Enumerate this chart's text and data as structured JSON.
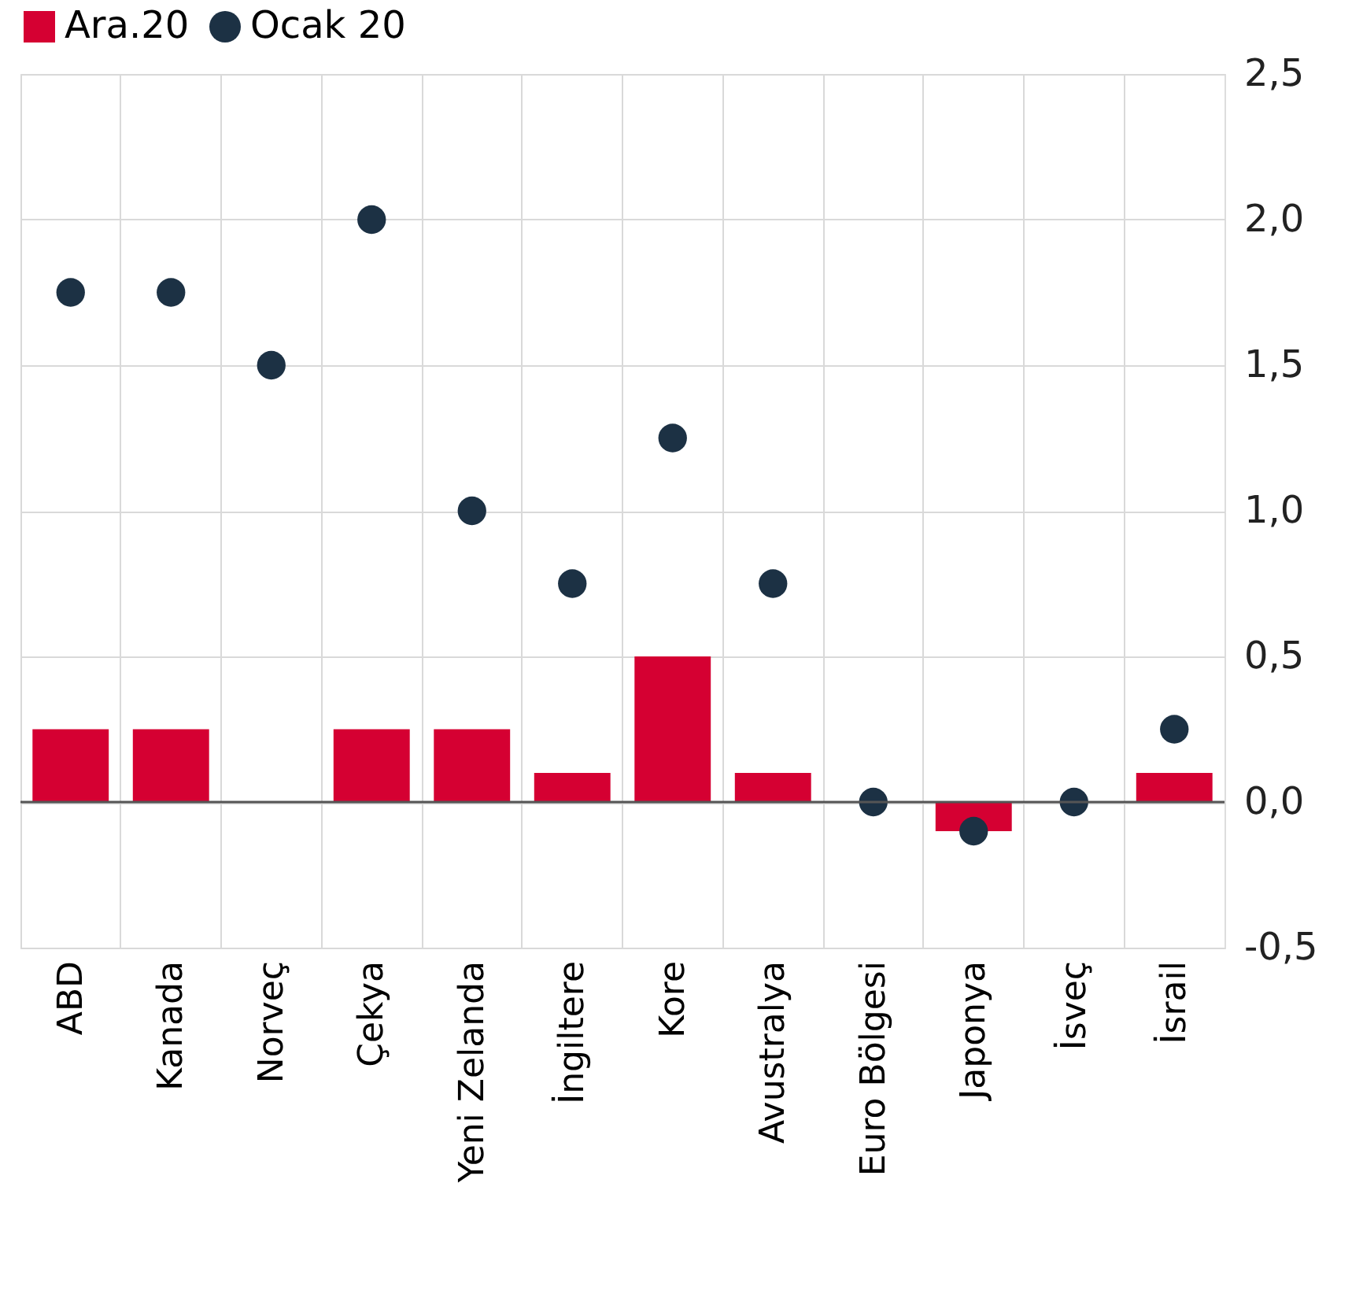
{
  "chart_data": {
    "type": "bar",
    "categories": [
      "ABD",
      "Kanada",
      "Norveç",
      "Çekya",
      "Yeni Zelanda",
      "İngiltere",
      "Kore",
      "Avustralya",
      "Euro Bölgesi",
      "Japonya",
      "İsveç",
      "İsrail"
    ],
    "series": [
      {
        "name": "Ara.20",
        "color": "#d50032",
        "values": [
          0.25,
          0.25,
          0,
          0.25,
          0.25,
          0.1,
          0.5,
          0.1,
          0,
          -0.1,
          0,
          0.1
        ]
      },
      {
        "name": "Ocak 20",
        "type": "scatter",
        "marker": "circle",
        "color": "#1c3144",
        "values": [
          1.75,
          1.75,
          1.5,
          2.0,
          1.0,
          0.75,
          1.25,
          0.75,
          0,
          -0.1,
          0,
          0.25
        ]
      }
    ],
    "ylim": [
      -0.5,
      2.5
    ],
    "yticks": [
      {
        "value": -0.5,
        "label": "-0,5"
      },
      {
        "value": 0,
        "label": "0,0"
      },
      {
        "value": 0.5,
        "label": "0,5"
      },
      {
        "value": 1,
        "label": "1,0"
      },
      {
        "value": 1.5,
        "label": "1,5"
      },
      {
        "value": 2,
        "label": "2,0"
      },
      {
        "value": 2.5,
        "label": "2,5"
      }
    ],
    "ref_lines": [
      {
        "axis": "y",
        "value": 0,
        "color": "#555555"
      }
    ],
    "grid": true,
    "legend": "top"
  }
}
